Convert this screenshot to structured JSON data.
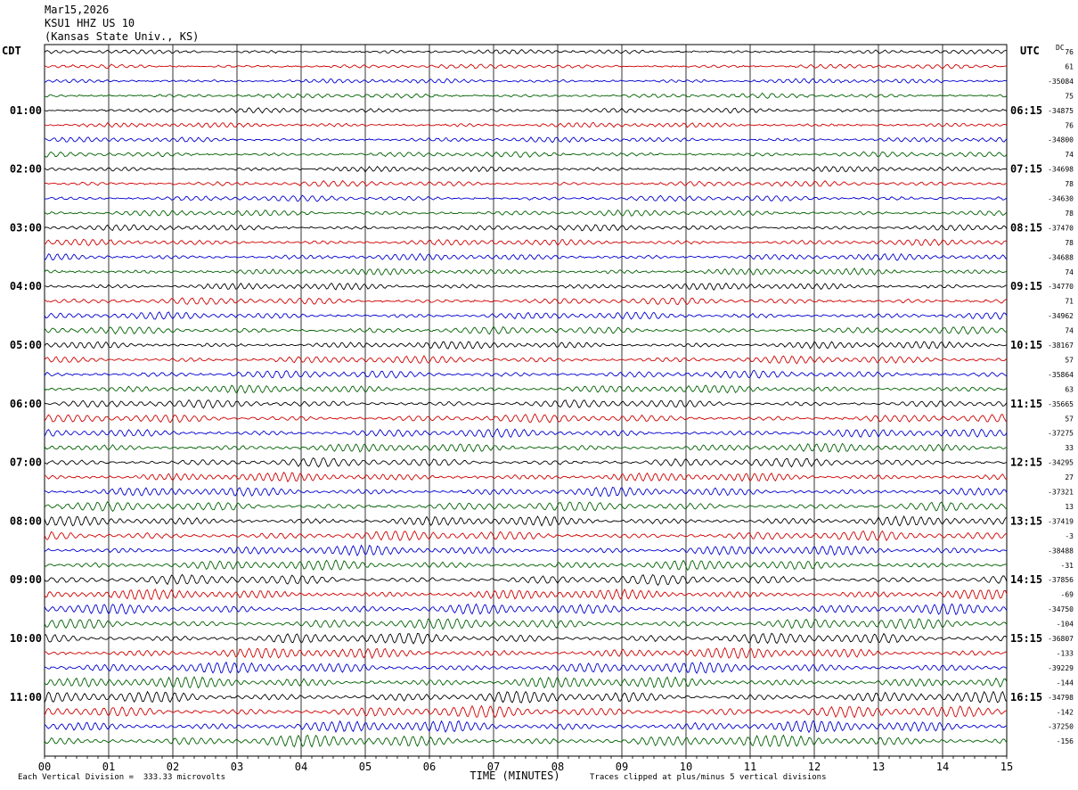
{
  "header": {
    "date": "Mar15,2026",
    "station": "KSU1 HHZ US 10",
    "location": "(Kansas State Univ., KS)"
  },
  "left_timezone": "CDT",
  "right_timezone": "UTC",
  "dc_label": "DC",
  "chart_data": {
    "type": "seismogram",
    "xlabel": "TIME (MINUTES)",
    "x_ticks": [
      "00",
      "01",
      "02",
      "03",
      "04",
      "05",
      "06",
      "07",
      "08",
      "09",
      "10",
      "11",
      "12",
      "13",
      "14",
      "15"
    ],
    "xlim": [
      0,
      15
    ],
    "left_hour_labels": [
      "01:00",
      "02:00",
      "03:00",
      "04:00",
      "05:00",
      "06:00",
      "07:00",
      "08:00",
      "09:00",
      "10:00",
      "11:00"
    ],
    "right_hour_labels": [
      "06:15",
      "07:15",
      "08:15",
      "09:15",
      "10:15",
      "11:15",
      "12:15",
      "13:15",
      "14:15",
      "15:15",
      "16:15"
    ],
    "trace_colors": [
      "#000000",
      "#d00000",
      "#0000d0",
      "#006000"
    ],
    "trace_count": 48,
    "dc_offsets": [
      "76",
      "61",
      "-35084",
      "75",
      "-34875",
      "76",
      "-34800",
      "74",
      "-34698",
      "78",
      "-34630",
      "78",
      "-37470",
      "78",
      "-34688",
      "74",
      "-34770",
      "71",
      "-34962",
      "74",
      "-38167",
      "57",
      "-35864",
      "63",
      "-35665",
      "57",
      "-37275",
      "33",
      "-34295",
      "27",
      "-37321",
      "13",
      "-37419",
      "-3",
      "-38488",
      "-31",
      "-37856",
      "-69",
      "-34750",
      "-104",
      "-36807",
      "-133",
      "-39229",
      "-144",
      "-34798",
      "-142",
      "-37250",
      "-156"
    ],
    "footer_left": "Each Vertical Division =  333.33 microvolts",
    "footer_right": "Traces clipped at plus/minus 5 vertical divisions"
  }
}
